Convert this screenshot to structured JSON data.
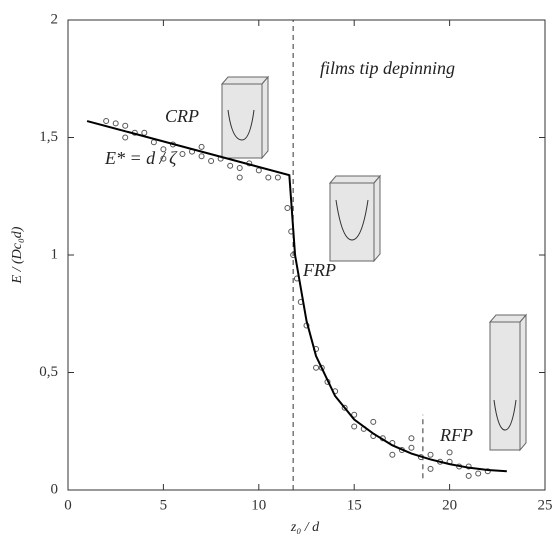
{
  "chart_data": {
    "type": "scatter",
    "xlabel": "z₀ / d",
    "ylabel": "E / (Dc₀d)",
    "xlim": [
      0,
      25
    ],
    "xticks": [
      0,
      5,
      10,
      15,
      20,
      25
    ],
    "ylim": [
      0,
      2
    ],
    "yticks": [
      0,
      {
        "value": 0.5,
        "label": "0,5"
      },
      1,
      {
        "value": 1.5,
        "label": "1,5"
      },
      2
    ],
    "annotations": [
      "films tip depinning",
      "CRP",
      "E* = d / ζ",
      "FRP",
      "RFP"
    ],
    "vlines": [
      {
        "x": 11.8,
        "ylim": [
          0,
          2
        ]
      },
      {
        "x": 18.6,
        "ylim": [
          0.05,
          0.32
        ]
      }
    ],
    "series": [
      {
        "type": "scatter",
        "color": "#555555",
        "x": [
          2,
          2.5,
          3,
          3.5,
          4,
          4.5,
          5,
          5.5,
          6,
          6.5,
          7,
          7.5,
          8,
          8.5,
          9,
          9.5,
          10,
          10.5,
          11,
          11.5,
          11.7,
          11.8,
          12,
          12.2,
          12.5,
          13,
          13.3,
          13.6,
          14,
          14.5,
          15,
          15.5,
          16,
          16.5,
          17,
          17.5,
          18,
          18.5,
          19,
          19.5,
          20,
          20.5,
          21,
          21.5,
          22,
          3,
          5,
          7,
          9,
          13,
          15,
          17,
          19,
          21,
          16,
          18,
          20
        ],
        "values": [
          1.57,
          1.56,
          1.55,
          1.52,
          1.52,
          1.48,
          1.45,
          1.47,
          1.43,
          1.44,
          1.42,
          1.4,
          1.41,
          1.38,
          1.37,
          1.39,
          1.36,
          1.33,
          1.33,
          1.2,
          1.1,
          1.0,
          0.9,
          0.8,
          0.7,
          0.6,
          0.52,
          0.46,
          0.42,
          0.35,
          0.32,
          0.26,
          0.23,
          0.22,
          0.2,
          0.17,
          0.18,
          0.14,
          0.15,
          0.12,
          0.12,
          0.1,
          0.1,
          0.07,
          0.08,
          1.5,
          1.41,
          1.46,
          1.33,
          0.52,
          0.27,
          0.15,
          0.09,
          0.06,
          0.29,
          0.22,
          0.16
        ]
      },
      {
        "type": "line",
        "color": "#000000",
        "x": [
          1,
          11.6,
          11.9,
          12.5,
          13,
          14,
          15,
          16,
          17,
          18,
          19,
          20,
          21,
          22,
          23
        ],
        "values": [
          1.57,
          1.34,
          1.0,
          0.72,
          0.57,
          0.4,
          0.3,
          0.24,
          0.19,
          0.155,
          0.13,
          0.11,
          0.095,
          0.085,
          0.08
        ]
      }
    ]
  }
}
